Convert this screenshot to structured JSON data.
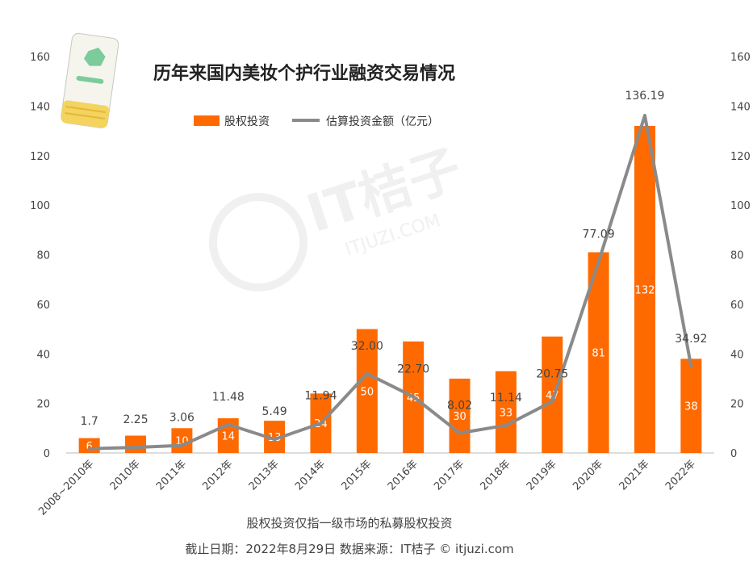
{
  "chart_data": {
    "type": "bar",
    "title": "历年来国内美妆个护行业融资交易情况",
    "categories": [
      "2008~2010年",
      "2010年",
      "2011年",
      "2012年",
      "2013年",
      "2014年",
      "2015年",
      "2016年",
      "2017年",
      "2018年",
      "2019年",
      "2020年",
      "2021年",
      "2022年"
    ],
    "series": [
      {
        "name": "股权投资",
        "type": "bar",
        "color": "#FF6A00",
        "values": [
          6,
          7,
          10,
          14,
          13,
          24,
          50,
          45,
          30,
          33,
          47,
          81,
          132,
          38
        ],
        "labels": [
          "6",
          "",
          "10",
          "14",
          "13",
          "24",
          "50",
          "45",
          "30",
          "33",
          "47",
          "81",
          "132",
          "38"
        ]
      },
      {
        "name": "估算投资金额（亿元）",
        "type": "line",
        "color": "#8A8A8A",
        "values": [
          1.7,
          2.25,
          3.06,
          11.48,
          5.49,
          11.94,
          32.0,
          22.7,
          8.02,
          11.14,
          20.75,
          77.09,
          136.19,
          34.92
        ],
        "labels": [
          "1.7",
          "2.25",
          "3.06",
          "11.48",
          "5.49",
          "11.94",
          "32.00",
          "22.70",
          "8.02",
          "11.14",
          "20.75",
          "77.09",
          "136.19",
          "34.92"
        ]
      }
    ],
    "ylim": [
      0,
      160
    ],
    "yticks": [
      "0",
      "20",
      "40",
      "60",
      "80",
      "100",
      "120",
      "140",
      "160"
    ],
    "y2ticks": [
      "0",
      "20",
      "40",
      "60",
      "80",
      "100",
      "120",
      "140",
      "160"
    ],
    "grid": false,
    "legend_position": "top"
  },
  "notes": {
    "note": "股权投资仅指一级市场的私募股权投资",
    "source": "截止日期：2022年8月29日    数据来源：IT桔子 © itjuzi.com"
  },
  "watermark": {
    "brand": "IT桔子",
    "url": "ITJUZI.COM"
  },
  "colors": {
    "bar": "#FF6A00",
    "line": "#8A8A8A",
    "axis": "#bbbbbb"
  }
}
